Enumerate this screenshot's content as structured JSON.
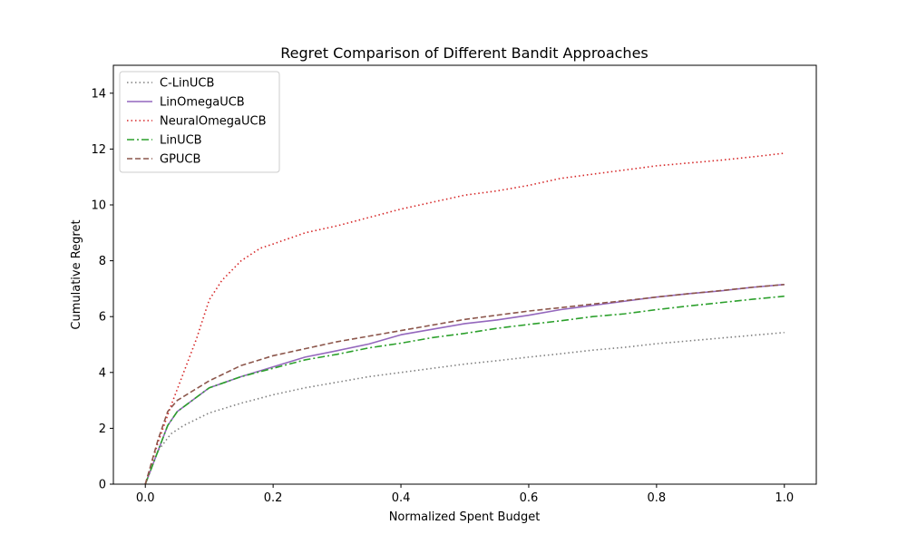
{
  "chart_data": {
    "type": "line",
    "title": "Regret Comparison of Different Bandit Approaches",
    "xlabel": "Normalized Spent Budget",
    "ylabel": "Cumulative Regret",
    "xlim": [
      -0.05,
      1.05
    ],
    "ylim": [
      0,
      15
    ],
    "xticks": [
      0.0,
      0.2,
      0.4,
      0.6,
      0.8,
      1.0
    ],
    "xtick_labels": [
      "0.0",
      "0.2",
      "0.4",
      "0.6",
      "0.8",
      "1.0"
    ],
    "yticks": [
      0,
      2,
      4,
      6,
      8,
      10,
      12,
      14
    ],
    "ytick_labels": [
      "0",
      "2",
      "4",
      "6",
      "8",
      "10",
      "12",
      "14"
    ],
    "grid": false,
    "legend_position": "top-left",
    "series": [
      {
        "name": "C-LinUCB",
        "color": "#7f7f7f",
        "style": "dotted",
        "x": [
          0.0,
          0.02,
          0.04,
          0.06,
          0.1,
          0.15,
          0.2,
          0.25,
          0.3,
          0.35,
          0.4,
          0.45,
          0.5,
          0.55,
          0.6,
          0.65,
          0.7,
          0.75,
          0.8,
          0.85,
          0.9,
          0.95,
          1.0
        ],
        "y": [
          0.0,
          1.2,
          1.8,
          2.1,
          2.55,
          2.9,
          3.2,
          3.45,
          3.65,
          3.85,
          4.0,
          4.15,
          4.3,
          4.42,
          4.55,
          4.67,
          4.8,
          4.9,
          5.03,
          5.13,
          5.23,
          5.33,
          5.43
        ]
      },
      {
        "name": "LinOmegaUCB",
        "color": "#9467bd",
        "style": "solid",
        "x": [
          0.0,
          0.02,
          0.035,
          0.05,
          0.1,
          0.15,
          0.2,
          0.25,
          0.3,
          0.35,
          0.4,
          0.45,
          0.5,
          0.55,
          0.6,
          0.65,
          0.7,
          0.75,
          0.8,
          0.85,
          0.9,
          0.95,
          1.0
        ],
        "y": [
          0.0,
          1.2,
          2.1,
          2.6,
          3.45,
          3.85,
          4.2,
          4.55,
          4.78,
          5.02,
          5.35,
          5.55,
          5.75,
          5.88,
          6.05,
          6.25,
          6.4,
          6.55,
          6.7,
          6.82,
          6.92,
          7.05,
          7.15
        ]
      },
      {
        "name": "NeuralOmegaUCB",
        "color": "#d62728",
        "style": "dotted",
        "x": [
          0.0,
          0.02,
          0.04,
          0.06,
          0.08,
          0.1,
          0.12,
          0.15,
          0.18,
          0.2,
          0.25,
          0.3,
          0.35,
          0.4,
          0.45,
          0.5,
          0.55,
          0.6,
          0.65,
          0.7,
          0.75,
          0.8,
          0.85,
          0.9,
          0.95,
          1.0
        ],
        "y": [
          0.0,
          1.5,
          2.8,
          4.0,
          5.2,
          6.6,
          7.3,
          8.0,
          8.45,
          8.6,
          9.0,
          9.25,
          9.55,
          9.85,
          10.1,
          10.35,
          10.5,
          10.7,
          10.95,
          11.1,
          11.25,
          11.4,
          11.5,
          11.6,
          11.72,
          11.85
        ]
      },
      {
        "name": "LinUCB",
        "color": "#2ca02c",
        "style": "dashdot",
        "x": [
          0.0,
          0.02,
          0.035,
          0.05,
          0.1,
          0.15,
          0.2,
          0.25,
          0.3,
          0.35,
          0.4,
          0.45,
          0.5,
          0.55,
          0.6,
          0.65,
          0.7,
          0.75,
          0.8,
          0.85,
          0.9,
          0.95,
          1.0
        ],
        "y": [
          0.0,
          1.2,
          2.1,
          2.6,
          3.45,
          3.85,
          4.15,
          4.45,
          4.65,
          4.88,
          5.05,
          5.25,
          5.4,
          5.58,
          5.72,
          5.85,
          6.0,
          6.1,
          6.25,
          6.38,
          6.5,
          6.62,
          6.73
        ]
      },
      {
        "name": "GPUCB",
        "color": "#8c564b",
        "style": "dashed",
        "x": [
          0.0,
          0.02,
          0.035,
          0.05,
          0.1,
          0.15,
          0.2,
          0.25,
          0.3,
          0.35,
          0.4,
          0.45,
          0.5,
          0.55,
          0.6,
          0.65,
          0.7,
          0.75,
          0.8,
          0.85,
          0.9,
          0.95,
          1.0
        ],
        "y": [
          0.0,
          1.6,
          2.6,
          3.0,
          3.7,
          4.25,
          4.6,
          4.85,
          5.1,
          5.3,
          5.5,
          5.7,
          5.9,
          6.05,
          6.2,
          6.32,
          6.45,
          6.57,
          6.7,
          6.82,
          6.93,
          7.05,
          7.15
        ]
      }
    ]
  }
}
